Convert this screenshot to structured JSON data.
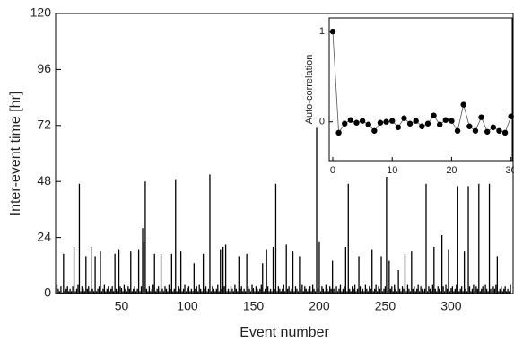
{
  "chart_data": [
    {
      "type": "bar",
      "xlabel": "Event number",
      "ylabel": "Inter-event time [hr]",
      "color": "#000000",
      "xlim": [
        0,
        347
      ],
      "xticks": [
        50,
        100,
        150,
        200,
        250,
        300
      ],
      "ylim": [
        0,
        120
      ],
      "yticks": [
        0,
        24,
        48,
        72,
        96,
        120
      ],
      "values": [
        4,
        2,
        1,
        3,
        0.5,
        17,
        1,
        2,
        3,
        1,
        2,
        1,
        3,
        20,
        1,
        2,
        4,
        47,
        1,
        3,
        2,
        1,
        16,
        2,
        3,
        1,
        20,
        2,
        1,
        16,
        1,
        2,
        3,
        18,
        1,
        2,
        4,
        1,
        2,
        3,
        1,
        2,
        3,
        1,
        17,
        2,
        1,
        19,
        3,
        2,
        1,
        4,
        2,
        1,
        3,
        2,
        18,
        1,
        2,
        3,
        1,
        2,
        19,
        1,
        3,
        28,
        22,
        48,
        2,
        1,
        3,
        1,
        2,
        4,
        17,
        1,
        2,
        3,
        1,
        17,
        2,
        1,
        3,
        2,
        1,
        4,
        2,
        17,
        1,
        2,
        49,
        1,
        3,
        2,
        18,
        1,
        2,
        4,
        1,
        2,
        3,
        1,
        2,
        1,
        13,
        2,
        3,
        1,
        4,
        2,
        1,
        17,
        2,
        3,
        1,
        2,
        51,
        1,
        3,
        2,
        1,
        2,
        4,
        1,
        19,
        2,
        20,
        3,
        21,
        1,
        2,
        1,
        3,
        2,
        1,
        4,
        2,
        1,
        16,
        2,
        3,
        1,
        2,
        1,
        17,
        3,
        2,
        1,
        4,
        2,
        1,
        3,
        2,
        1,
        2,
        4,
        13,
        1,
        2,
        19,
        3,
        1,
        2,
        1,
        20,
        2,
        47,
        1,
        3,
        2,
        1,
        2,
        4,
        1,
        21,
        2,
        3,
        1,
        2,
        18,
        1,
        3,
        2,
        1,
        16,
        2,
        4,
        1,
        3,
        2,
        1,
        2,
        3,
        1,
        4,
        2,
        1,
        71,
        2,
        22,
        1,
        3,
        2,
        1,
        4,
        2,
        1,
        3,
        2,
        14,
        2,
        1,
        3,
        1,
        2,
        4,
        1,
        2,
        3,
        20,
        1,
        47,
        2,
        1,
        3,
        2,
        4,
        1,
        2,
        16,
        3,
        1,
        2,
        1,
        4,
        2,
        1,
        3,
        2,
        19,
        1,
        2,
        4,
        1,
        3,
        2,
        16,
        1,
        2,
        3,
        50,
        1,
        14,
        2,
        3,
        1,
        4,
        2,
        1,
        10,
        2,
        1,
        3,
        2,
        17,
        1,
        4,
        2,
        1,
        18,
        2,
        3,
        1,
        2,
        4,
        1,
        3,
        2,
        1,
        2,
        47,
        1,
        3,
        2,
        1,
        4,
        20,
        2,
        1,
        3,
        2,
        1,
        25,
        3,
        1,
        4,
        2,
        19,
        1,
        2,
        3,
        1,
        2,
        4,
        46,
        1,
        2,
        3,
        1,
        18,
        2,
        1,
        46,
        3,
        1,
        2,
        4,
        1,
        3,
        2,
        47,
        1,
        2,
        3,
        1,
        4,
        2,
        1,
        47,
        2,
        1,
        3,
        2,
        4,
        16,
        1,
        2,
        3,
        1,
        2,
        3,
        1,
        2,
        1,
        4
      ]
    },
    {
      "type": "line",
      "ylabel": "Auto-correlation",
      "color": "#000000",
      "xlim": [
        -0.6,
        30.2
      ],
      "xticks": [
        0,
        10,
        20,
        30
      ],
      "ylim": [
        -0.43,
        1.15
      ],
      "yticks": [
        0,
        1
      ],
      "x": [
        0,
        1,
        2,
        3,
        4,
        5,
        6,
        7,
        8,
        9,
        10,
        11,
        12,
        13,
        14,
        15,
        16,
        17,
        18,
        19,
        20,
        21,
        22,
        23,
        24,
        25,
        26,
        27,
        28,
        29,
        30
      ],
      "values": [
        1,
        -0.12,
        -0.02,
        0.02,
        -0.01,
        0.01,
        -0.03,
        -0.1,
        -0.01,
        0.0,
        0.01,
        -0.06,
        0.04,
        -0.02,
        0.01,
        -0.05,
        -0.02,
        0.07,
        -0.03,
        0.02,
        0.01,
        -0.1,
        0.19,
        -0.05,
        -0.1,
        0.05,
        -0.11,
        -0.06,
        -0.1,
        -0.12,
        0.06
      ]
    }
  ]
}
